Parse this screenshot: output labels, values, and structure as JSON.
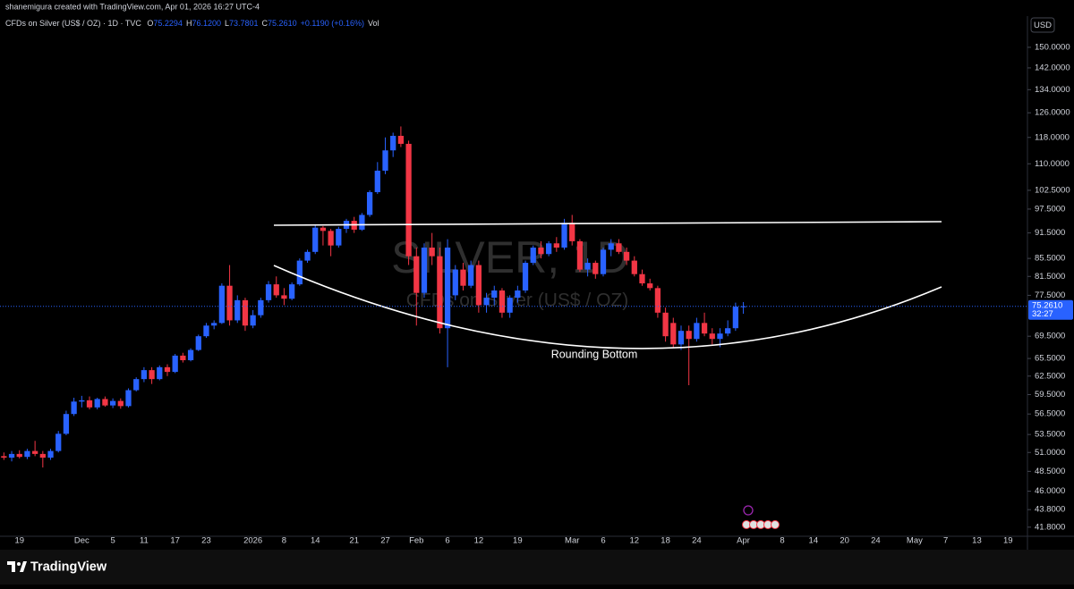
{
  "header": {
    "credit": "shanemigura created with TradingView.com, Apr 01, 2026 16:27 UTC-4",
    "symbol": "CFDs on Silver (US$ / OZ) · 1D · TVC",
    "ohlc": [
      {
        "key": "O",
        "value": "75.2294"
      },
      {
        "key": "H",
        "value": "76.1200"
      },
      {
        "key": "L",
        "value": "73.7801"
      },
      {
        "key": "C",
        "value": "75.2610"
      }
    ],
    "change": "+0.1190 (+0.16%)",
    "volume": "Vol"
  },
  "currency": "USD",
  "footer": {
    "brand": "TradingView"
  },
  "chart_data": {
    "type": "candlestick",
    "watermark": [
      "SILVER, 1D",
      "CFDs on Silver (US$ / OZ)"
    ],
    "annotations": [
      "Rounding Bottom"
    ],
    "up_color": "#2962ff",
    "down_color": "#f23645",
    "log_scale": true,
    "ylim": [
      40.8,
      163
    ],
    "yticks": [
      {
        "value": 41.8,
        "label": "41.8000"
      },
      {
        "value": 43.8,
        "label": "43.8000"
      },
      {
        "value": 46,
        "label": "46.0000"
      },
      {
        "value": 48.5,
        "label": "48.5000"
      },
      {
        "value": 51,
        "label": "51.0000"
      },
      {
        "value": 53.5,
        "label": "53.5000"
      },
      {
        "value": 56.5,
        "label": "56.5000"
      },
      {
        "value": 59.5,
        "label": "59.5000"
      },
      {
        "value": 62.5,
        "label": "62.5000"
      },
      {
        "value": 65.5,
        "label": "65.5000"
      },
      {
        "value": 69.5,
        "label": "69.5000"
      },
      {
        "value": 77.5,
        "label": "77.5000"
      },
      {
        "value": 81.5,
        "label": "81.5000"
      },
      {
        "value": 85.5,
        "label": "85.5000"
      },
      {
        "value": 91.5,
        "label": "91.5000"
      },
      {
        "value": 97.5,
        "label": "97.5000"
      },
      {
        "value": 102.5,
        "label": "102.5000"
      },
      {
        "value": 110,
        "label": "110.0000"
      },
      {
        "value": 118,
        "label": "118.0000"
      },
      {
        "value": 126,
        "label": "126.0000"
      },
      {
        "value": 134,
        "label": "134.0000"
      },
      {
        "value": 142,
        "label": "142.0000"
      },
      {
        "value": 150,
        "label": "150.0000"
      }
    ],
    "last_price": {
      "value": 75.261,
      "label": "75.2610",
      "countdown": "32:27"
    },
    "categories": [
      null,
      null,
      "19",
      null,
      null,
      null,
      null,
      null,
      null,
      null,
      "Dec",
      null,
      null,
      null,
      "5",
      null,
      null,
      null,
      "11",
      null,
      null,
      null,
      "17",
      null,
      null,
      null,
      "23",
      null,
      null,
      null,
      null,
      null,
      "2026",
      null,
      null,
      null,
      "8",
      null,
      null,
      null,
      "14",
      null,
      null,
      null,
      null,
      "21",
      null,
      null,
      null,
      "27",
      null,
      null,
      null,
      "Feb",
      null,
      null,
      null,
      "6",
      null,
      null,
      null,
      "12",
      null,
      null,
      null,
      null,
      "19",
      null,
      null,
      null,
      null,
      null,
      null,
      "Mar",
      null,
      null,
      null,
      "6",
      null,
      null,
      null,
      "12",
      null,
      null,
      null,
      "18",
      null,
      null,
      null,
      "24",
      null,
      null,
      null,
      null,
      null,
      "Apr",
      null,
      null,
      null,
      null,
      "8",
      null,
      null,
      null,
      "14",
      null,
      null,
      null,
      "20",
      null,
      null,
      null,
      "24",
      null,
      null,
      null,
      null,
      "May",
      null,
      null,
      null,
      "7",
      null,
      null,
      null,
      "13",
      null,
      null,
      null,
      "19",
      null,
      null
    ],
    "open": [
      50.5,
      50.3,
      50.8,
      50.4,
      51.2,
      50.8,
      50.3,
      51.2,
      53.6,
      56.5,
      58.4,
      58.6,
      57.5,
      58.8,
      57.8,
      58.5,
      57.7,
      60.2,
      62,
      63.5,
      62,
      64,
      63.2,
      66,
      65.2,
      67,
      69.5,
      71.5,
      72,
      79.5,
      72.5,
      76.5,
      71.5,
      73.5,
      76.5,
      79.8,
      77.5,
      76.8,
      79.8,
      85,
      87,
      92.8,
      92,
      88.5,
      92.5,
      94.5,
      92.3,
      96,
      102,
      108,
      114,
      118.5,
      116,
      86,
      78,
      88,
      86,
      71,
      77.5,
      83,
      79.5,
      84,
      75.5,
      77,
      78.5,
      74,
      77,
      78.5,
      84.5,
      88,
      86.5,
      89,
      88,
      94,
      89.5,
      83,
      84.5,
      82,
      87.5,
      89,
      87,
      85,
      82,
      80,
      79,
      74,
      72,
      68,
      70.5,
      69,
      72,
      70,
      69,
      70,
      71,
      75.2294,
      null,
      null,
      null,
      null,
      null,
      null,
      null,
      null,
      null,
      null,
      null,
      null,
      null,
      null,
      null,
      null,
      null,
      null,
      null,
      null,
      null,
      null,
      null,
      null,
      null,
      null,
      null,
      null,
      null,
      null,
      null,
      null,
      null,
      null,
      null,
      null
    ],
    "high": [
      51,
      51.2,
      51.3,
      51.5,
      52.6,
      51.2,
      51.5,
      54,
      57,
      59,
      59.3,
      59.2,
      59,
      59.2,
      58.9,
      58.9,
      60.5,
      62.3,
      64,
      64,
      64.3,
      64.5,
      66.3,
      66.5,
      67.3,
      69.8,
      72,
      72.5,
      80,
      84,
      77.5,
      77,
      74.5,
      77,
      80.5,
      81.5,
      79,
      80.2,
      85.5,
      87.5,
      93.5,
      93.2,
      92.5,
      93,
      95,
      95.5,
      96.5,
      102.5,
      110.5,
      118,
      119.5,
      121.5,
      117,
      88,
      89,
      91.5,
      88,
      90,
      84,
      84.5,
      85,
      85,
      78,
      79.5,
      79,
      77.5,
      79.5,
      85,
      88.5,
      89.5,
      89.5,
      90.5,
      95,
      96,
      90,
      85.5,
      85,
      88,
      90,
      90,
      88,
      86,
      83,
      81,
      79.5,
      75,
      73,
      71.5,
      71.5,
      73,
      74,
      71,
      71,
      72.5,
      76,
      76.12,
      null,
      null,
      null,
      null,
      null,
      null,
      null,
      null,
      null,
      null,
      null,
      null,
      null,
      null,
      null,
      null,
      null,
      null,
      null,
      null,
      null,
      null,
      null,
      null,
      null,
      null,
      null,
      null,
      null,
      null,
      null,
      null,
      null,
      null,
      null,
      null
    ],
    "low": [
      50,
      49.8,
      50.2,
      50.1,
      50.5,
      49,
      50,
      51,
      53.4,
      56.2,
      57.5,
      57.2,
      57.2,
      57.6,
      57.4,
      57.3,
      57.5,
      60,
      61.5,
      61.2,
      61.8,
      62.5,
      63,
      64.8,
      65,
      66.8,
      69.2,
      70.8,
      71.8,
      71.5,
      72,
      70.5,
      71,
      73,
      76,
      77,
      75.5,
      76.5,
      79.5,
      84.5,
      86.5,
      88.5,
      86,
      88,
      91.5,
      91.5,
      92,
      95.5,
      101.5,
      107,
      112,
      115,
      84,
      71.5,
      77,
      84,
      70,
      64,
      76.5,
      78.5,
      79,
      74,
      74,
      75.5,
      73,
      73,
      76,
      78,
      84,
      85.5,
      86,
      87,
      87.5,
      88.5,
      82.5,
      81.5,
      81,
      81.5,
      86,
      86.5,
      84,
      81.5,
      79.5,
      78.5,
      73,
      68.5,
      67.5,
      67,
      61,
      68.5,
      69.5,
      68,
      67.5,
      69.5,
      70.5,
      73.7801,
      null,
      null,
      null,
      null,
      null,
      null,
      null,
      null,
      null,
      null,
      null,
      null,
      null,
      null,
      null,
      null,
      null,
      null,
      null,
      null,
      null,
      null,
      null,
      null,
      null,
      null,
      null,
      null,
      null,
      null,
      null,
      null,
      null,
      null,
      null,
      null
    ],
    "close": [
      50.3,
      50.8,
      50.4,
      51.2,
      50.8,
      50.3,
      51.2,
      53.6,
      56.5,
      58.4,
      58.6,
      57.5,
      58.8,
      57.8,
      58.5,
      57.7,
      60.2,
      62,
      63.5,
      62,
      64,
      63.2,
      66,
      65.2,
      67,
      69.5,
      71.5,
      72,
      79.5,
      72.5,
      76.5,
      71.5,
      73.5,
      76.5,
      79.8,
      77.5,
      76.8,
      79.8,
      85,
      87,
      92.8,
      92,
      88.5,
      92.5,
      94.5,
      92.3,
      96,
      102,
      108,
      114,
      118.5,
      116,
      86,
      78,
      88,
      86,
      71,
      88,
      83,
      79.5,
      84,
      75.5,
      77,
      78.5,
      74,
      77,
      78.5,
      84.5,
      88,
      86.5,
      89,
      88,
      94,
      89.5,
      83,
      84.5,
      82,
      87.5,
      89,
      87,
      85,
      82,
      80,
      79,
      74,
      69.5,
      68,
      70.5,
      69,
      72,
      70,
      69,
      70,
      71,
      75.2,
      75.261,
      null,
      null,
      null,
      null,
      null,
      null,
      null,
      null,
      null,
      null,
      null,
      null,
      null,
      null,
      null,
      null,
      null,
      null,
      null,
      null,
      null,
      null,
      null,
      null,
      null,
      null,
      null,
      null,
      null,
      null,
      null,
      null,
      null,
      null,
      null,
      null
    ]
  }
}
